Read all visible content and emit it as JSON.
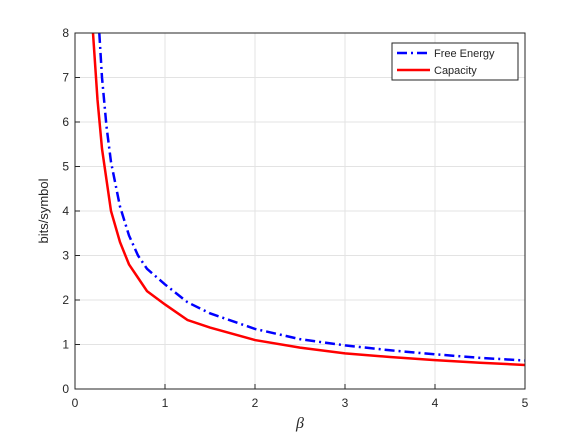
{
  "chart_data": {
    "type": "line",
    "x_label": "β",
    "y_label": "bits/symbol",
    "xlim": [
      0,
      5
    ],
    "ylim": [
      0,
      8
    ],
    "xticks": [
      0,
      1,
      2,
      3,
      4,
      5
    ],
    "yticks": [
      0,
      1,
      2,
      3,
      4,
      5,
      6,
      7,
      8
    ],
    "grid": true,
    "legend": "top-right",
    "series": [
      {
        "name": "Free Energy",
        "color": "#0000ff",
        "style": "dash-dot",
        "x": [
          0.27,
          0.3,
          0.35,
          0.4,
          0.5,
          0.6,
          0.7,
          0.8,
          1.0,
          1.25,
          1.5,
          2.0,
          2.5,
          3.0,
          3.5,
          4.0,
          4.5,
          5.0
        ],
        "values": [
          8,
          7.0,
          5.9,
          5.1,
          4.1,
          3.45,
          3.0,
          2.7,
          2.35,
          1.95,
          1.7,
          1.35,
          1.12,
          0.98,
          0.87,
          0.78,
          0.7,
          0.64
        ]
      },
      {
        "name": "Capacity",
        "color": "#ff0000",
        "style": "solid",
        "x": [
          0.2,
          0.25,
          0.3,
          0.4,
          0.5,
          0.6,
          0.7,
          0.8,
          1.0,
          1.25,
          1.5,
          2.0,
          2.5,
          3.0,
          3.5,
          4.0,
          4.5,
          5.0
        ],
        "values": [
          8,
          6.5,
          5.4,
          4.0,
          3.3,
          2.8,
          2.5,
          2.2,
          1.9,
          1.55,
          1.38,
          1.1,
          0.93,
          0.8,
          0.72,
          0.65,
          0.59,
          0.54
        ]
      }
    ]
  }
}
